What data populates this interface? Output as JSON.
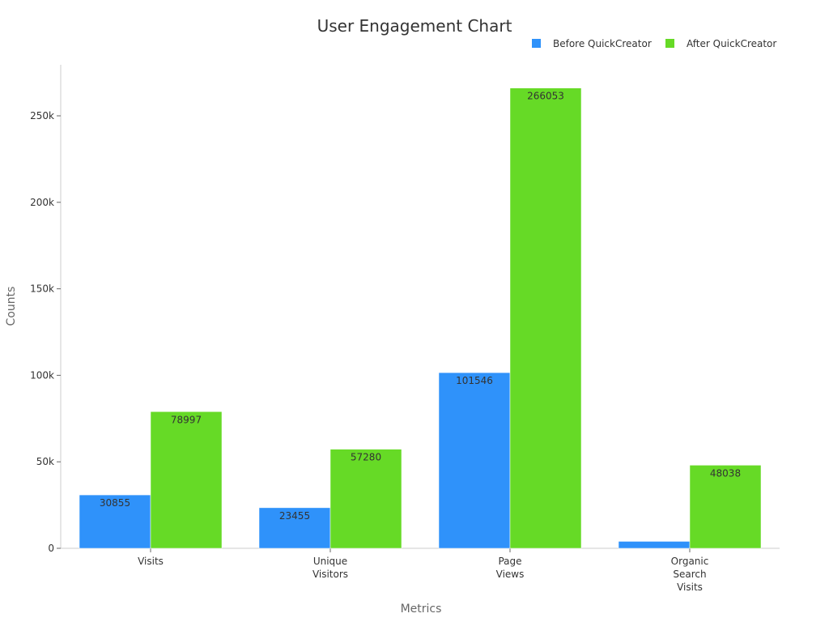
{
  "chart_data": {
    "type": "bar",
    "title": "User Engagement Chart",
    "xlabel": "Metrics",
    "ylabel": "Counts",
    "categories": [
      "Visits",
      "Unique Visitors",
      "Page Views",
      "Organic Search Visits"
    ],
    "category_lines": [
      [
        "Visits"
      ],
      [
        "Unique",
        "Visitors"
      ],
      [
        "Page",
        "Views"
      ],
      [
        "Organic",
        "Search",
        "Visits"
      ]
    ],
    "series": [
      {
        "name": "Before QuickCreator",
        "color": "#2f92fa",
        "values": [
          30855,
          23455,
          101546,
          4000
        ],
        "labels": [
          "30855",
          "23455",
          "101546",
          ""
        ]
      },
      {
        "name": "After QuickCreator",
        "color": "#66da26",
        "values": [
          78997,
          57280,
          266053,
          48038
        ],
        "labels": [
          "78997",
          "57280",
          "266053",
          "48038"
        ]
      }
    ],
    "ylim": [
      0,
      280000
    ],
    "yticks": [
      0,
      50000,
      100000,
      150000,
      200000,
      250000
    ],
    "ytick_labels": [
      "0",
      "50k",
      "100k",
      "150k",
      "200k",
      "250k"
    ],
    "legend": "top-right",
    "grid": false
  }
}
